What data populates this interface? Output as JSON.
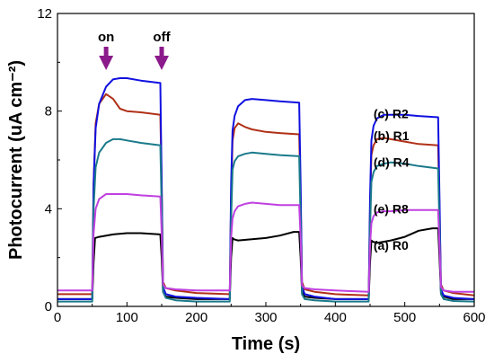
{
  "chart_data": {
    "type": "line",
    "xlabel": "Time (s)",
    "ylabel": "Photocurrent (uA cm⁻²)",
    "xlim": [
      0,
      600
    ],
    "ylim": [
      0,
      12
    ],
    "xticks": [
      0,
      100,
      200,
      300,
      400,
      500,
      600
    ],
    "yticks": [
      0,
      4,
      8,
      12
    ],
    "annotations": [
      {
        "text": "on",
        "x": 70,
        "arrow_color": "#8B1A8B"
      },
      {
        "text": "off",
        "x": 150,
        "arrow_color": "#8B1A8B"
      }
    ],
    "series": [
      {
        "name": "(a) R0",
        "color": "#000000",
        "x": [
          0,
          50,
          52,
          54,
          60,
          80,
          100,
          120,
          148,
          150,
          152,
          156,
          170,
          200,
          248,
          250,
          252,
          254,
          260,
          280,
          300,
          320,
          340,
          348,
          350,
          352,
          356,
          370,
          400,
          448,
          450,
          452,
          454,
          460,
          480,
          500,
          520,
          540,
          548,
          550,
          552,
          556,
          570,
          600
        ],
        "y": [
          0.3,
          0.3,
          1.8,
          2.8,
          2.85,
          2.95,
          3.0,
          3.0,
          2.95,
          2.0,
          0.6,
          0.4,
          0.35,
          0.3,
          0.3,
          2.0,
          2.8,
          2.75,
          2.7,
          2.75,
          2.8,
          2.9,
          3.05,
          3.05,
          2.0,
          0.6,
          0.4,
          0.35,
          0.3,
          0.3,
          1.8,
          2.7,
          2.65,
          2.6,
          2.7,
          2.85,
          3.1,
          3.2,
          3.2,
          2.0,
          0.6,
          0.4,
          0.3,
          0.3
        ]
      },
      {
        "name": "(b) R1",
        "color": "#B03018",
        "x": [
          0,
          50,
          52,
          55,
          60,
          70,
          80,
          90,
          100,
          120,
          148,
          150,
          152,
          156,
          170,
          200,
          248,
          250,
          252,
          255,
          260,
          270,
          280,
          300,
          320,
          348,
          350,
          352,
          356,
          370,
          400,
          448,
          450,
          452,
          455,
          460,
          470,
          480,
          500,
          520,
          548,
          550,
          552,
          556,
          570,
          600
        ],
        "y": [
          0.5,
          0.5,
          5.0,
          7.5,
          8.3,
          8.7,
          8.5,
          8.1,
          8.0,
          7.95,
          7.85,
          5.0,
          1.0,
          0.75,
          0.65,
          0.55,
          0.5,
          4.5,
          6.8,
          7.3,
          7.5,
          7.35,
          7.25,
          7.15,
          7.1,
          7.05,
          4.5,
          1.0,
          0.7,
          0.6,
          0.5,
          0.45,
          4.0,
          6.2,
          6.6,
          6.85,
          6.9,
          6.85,
          6.75,
          6.65,
          6.6,
          4.0,
          0.9,
          0.65,
          0.55,
          0.45
        ]
      },
      {
        "name": "(c) R2",
        "color": "#1010E0",
        "x": [
          0,
          50,
          52,
          55,
          60,
          70,
          80,
          90,
          100,
          120,
          148,
          150,
          152,
          156,
          170,
          200,
          248,
          250,
          252,
          255,
          260,
          270,
          280,
          300,
          320,
          348,
          350,
          352,
          356,
          370,
          400,
          448,
          450,
          452,
          455,
          460,
          470,
          480,
          500,
          520,
          548,
          550,
          552,
          556,
          570,
          600
        ],
        "y": [
          0.3,
          0.3,
          5.0,
          7.3,
          8.3,
          9.0,
          9.3,
          9.35,
          9.35,
          9.25,
          9.15,
          5.0,
          0.8,
          0.5,
          0.4,
          0.35,
          0.3,
          5.0,
          7.2,
          7.8,
          8.2,
          8.45,
          8.5,
          8.45,
          8.4,
          8.35,
          5.0,
          0.8,
          0.5,
          0.4,
          0.3,
          0.3,
          4.5,
          6.8,
          7.4,
          7.7,
          7.85,
          7.85,
          7.85,
          7.8,
          7.75,
          4.5,
          0.7,
          0.45,
          0.35,
          0.3
        ]
      },
      {
        "name": "(d) R4",
        "color": "#1A7A8A",
        "x": [
          0,
          50,
          52,
          55,
          60,
          70,
          80,
          90,
          100,
          120,
          148,
          150,
          152,
          156,
          170,
          200,
          248,
          250,
          252,
          255,
          260,
          270,
          280,
          300,
          320,
          348,
          350,
          352,
          356,
          370,
          400,
          448,
          450,
          452,
          455,
          460,
          470,
          480,
          500,
          520,
          548,
          550,
          552,
          556,
          570,
          600
        ],
        "y": [
          0.2,
          0.2,
          4.0,
          5.7,
          6.3,
          6.7,
          6.85,
          6.85,
          6.8,
          6.7,
          6.6,
          4.0,
          0.6,
          0.35,
          0.25,
          0.2,
          0.2,
          3.5,
          5.6,
          5.95,
          6.15,
          6.25,
          6.3,
          6.25,
          6.2,
          6.15,
          3.5,
          0.5,
          0.3,
          0.25,
          0.2,
          0.2,
          3.2,
          5.1,
          5.5,
          5.75,
          5.85,
          5.9,
          5.85,
          5.75,
          5.65,
          3.2,
          0.5,
          0.3,
          0.22,
          0.2
        ]
      },
      {
        "name": "(e) R8",
        "color": "#C040E0",
        "x": [
          0,
          50,
          52,
          55,
          60,
          70,
          80,
          90,
          100,
          120,
          148,
          150,
          152,
          156,
          170,
          200,
          248,
          250,
          252,
          255,
          260,
          270,
          280,
          300,
          320,
          348,
          350,
          352,
          356,
          370,
          400,
          448,
          450,
          452,
          455,
          460,
          470,
          480,
          500,
          520,
          548,
          550,
          552,
          556,
          570,
          600
        ],
        "y": [
          0.65,
          0.65,
          3.0,
          4.0,
          4.4,
          4.6,
          4.6,
          4.6,
          4.6,
          4.55,
          4.5,
          3.0,
          0.9,
          0.75,
          0.7,
          0.65,
          0.65,
          2.8,
          3.6,
          3.9,
          4.1,
          4.2,
          4.25,
          4.2,
          4.15,
          4.15,
          2.8,
          0.85,
          0.75,
          0.7,
          0.65,
          0.6,
          2.5,
          3.4,
          3.7,
          3.85,
          3.9,
          3.9,
          3.95,
          3.95,
          3.95,
          2.5,
          0.8,
          0.65,
          0.6,
          0.6
        ]
      }
    ]
  }
}
